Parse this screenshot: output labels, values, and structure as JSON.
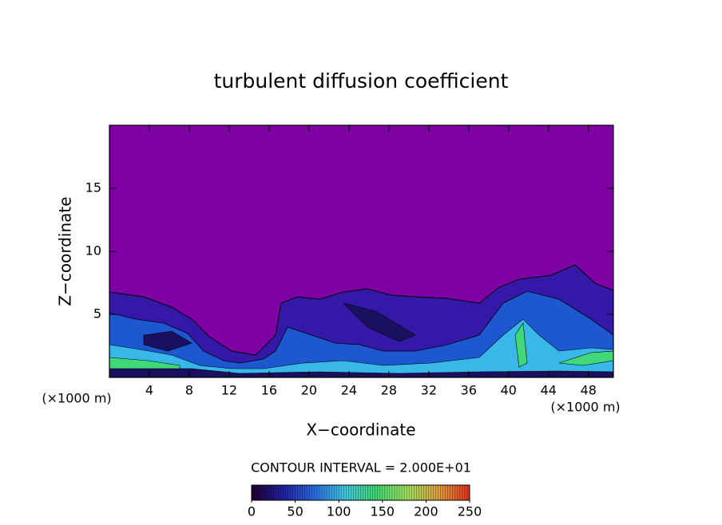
{
  "chart_data": {
    "type": "contour",
    "title": "turbulent diffusion coefficient",
    "xlabel": "X−coordinate",
    "ylabel": "Z−coordinate",
    "x_unit_left": "(×1000 m)",
    "x_unit_right": "(×1000 m)",
    "xlim": [
      0,
      50.5
    ],
    "ylim": [
      0,
      20
    ],
    "xticks": [
      4,
      8,
      12,
      16,
      20,
      24,
      28,
      32,
      36,
      40,
      44,
      48
    ],
    "yticks": [
      5,
      10,
      15
    ],
    "contour_interval_label": "CONTOUR INTERVAL = 2.000E+01",
    "colorbar": {
      "range": [
        0,
        250
      ],
      "ticks": [
        0,
        50,
        100,
        150,
        200,
        250
      ],
      "colors": [
        "#200030",
        "#2020a0",
        "#2a6ae0",
        "#40c8e0",
        "#40d870",
        "#a0e060",
        "#e0a040",
        "#e03020"
      ]
    }
  }
}
